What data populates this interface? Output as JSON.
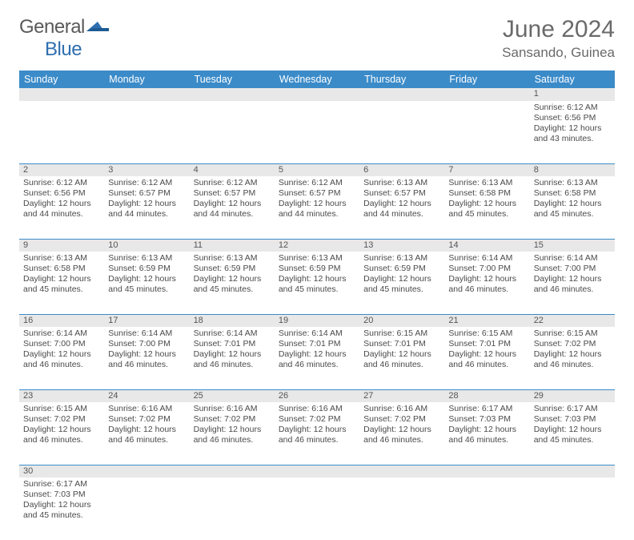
{
  "brand": {
    "part1": "General",
    "part2": "Blue"
  },
  "title": "June 2024",
  "location": "Sansando, Guinea",
  "colors": {
    "header_bg": "#3b8bc9",
    "header_text": "#ffffff",
    "daynum_bg": "#e8e8e8",
    "border": "#3b8bc9",
    "brand_blue": "#2f6fb0",
    "text": "#4a4a4a"
  },
  "weekdays": [
    "Sunday",
    "Monday",
    "Tuesday",
    "Wednesday",
    "Thursday",
    "Friday",
    "Saturday"
  ],
  "weeks": [
    [
      null,
      null,
      null,
      null,
      null,
      null,
      {
        "n": "1",
        "t": "Sunrise: 6:12 AM\nSunset: 6:56 PM\nDaylight: 12 hours\nand 43 minutes."
      }
    ],
    [
      {
        "n": "2",
        "t": "Sunrise: 6:12 AM\nSunset: 6:56 PM\nDaylight: 12 hours\nand 44 minutes."
      },
      {
        "n": "3",
        "t": "Sunrise: 6:12 AM\nSunset: 6:57 PM\nDaylight: 12 hours\nand 44 minutes."
      },
      {
        "n": "4",
        "t": "Sunrise: 6:12 AM\nSunset: 6:57 PM\nDaylight: 12 hours\nand 44 minutes."
      },
      {
        "n": "5",
        "t": "Sunrise: 6:12 AM\nSunset: 6:57 PM\nDaylight: 12 hours\nand 44 minutes."
      },
      {
        "n": "6",
        "t": "Sunrise: 6:13 AM\nSunset: 6:57 PM\nDaylight: 12 hours\nand 44 minutes."
      },
      {
        "n": "7",
        "t": "Sunrise: 6:13 AM\nSunset: 6:58 PM\nDaylight: 12 hours\nand 45 minutes."
      },
      {
        "n": "8",
        "t": "Sunrise: 6:13 AM\nSunset: 6:58 PM\nDaylight: 12 hours\nand 45 minutes."
      }
    ],
    [
      {
        "n": "9",
        "t": "Sunrise: 6:13 AM\nSunset: 6:58 PM\nDaylight: 12 hours\nand 45 minutes."
      },
      {
        "n": "10",
        "t": "Sunrise: 6:13 AM\nSunset: 6:59 PM\nDaylight: 12 hours\nand 45 minutes."
      },
      {
        "n": "11",
        "t": "Sunrise: 6:13 AM\nSunset: 6:59 PM\nDaylight: 12 hours\nand 45 minutes."
      },
      {
        "n": "12",
        "t": "Sunrise: 6:13 AM\nSunset: 6:59 PM\nDaylight: 12 hours\nand 45 minutes."
      },
      {
        "n": "13",
        "t": "Sunrise: 6:13 AM\nSunset: 6:59 PM\nDaylight: 12 hours\nand 45 minutes."
      },
      {
        "n": "14",
        "t": "Sunrise: 6:14 AM\nSunset: 7:00 PM\nDaylight: 12 hours\nand 46 minutes."
      },
      {
        "n": "15",
        "t": "Sunrise: 6:14 AM\nSunset: 7:00 PM\nDaylight: 12 hours\nand 46 minutes."
      }
    ],
    [
      {
        "n": "16",
        "t": "Sunrise: 6:14 AM\nSunset: 7:00 PM\nDaylight: 12 hours\nand 46 minutes."
      },
      {
        "n": "17",
        "t": "Sunrise: 6:14 AM\nSunset: 7:00 PM\nDaylight: 12 hours\nand 46 minutes."
      },
      {
        "n": "18",
        "t": "Sunrise: 6:14 AM\nSunset: 7:01 PM\nDaylight: 12 hours\nand 46 minutes."
      },
      {
        "n": "19",
        "t": "Sunrise: 6:14 AM\nSunset: 7:01 PM\nDaylight: 12 hours\nand 46 minutes."
      },
      {
        "n": "20",
        "t": "Sunrise: 6:15 AM\nSunset: 7:01 PM\nDaylight: 12 hours\nand 46 minutes."
      },
      {
        "n": "21",
        "t": "Sunrise: 6:15 AM\nSunset: 7:01 PM\nDaylight: 12 hours\nand 46 minutes."
      },
      {
        "n": "22",
        "t": "Sunrise: 6:15 AM\nSunset: 7:02 PM\nDaylight: 12 hours\nand 46 minutes."
      }
    ],
    [
      {
        "n": "23",
        "t": "Sunrise: 6:15 AM\nSunset: 7:02 PM\nDaylight: 12 hours\nand 46 minutes."
      },
      {
        "n": "24",
        "t": "Sunrise: 6:16 AM\nSunset: 7:02 PM\nDaylight: 12 hours\nand 46 minutes."
      },
      {
        "n": "25",
        "t": "Sunrise: 6:16 AM\nSunset: 7:02 PM\nDaylight: 12 hours\nand 46 minutes."
      },
      {
        "n": "26",
        "t": "Sunrise: 6:16 AM\nSunset: 7:02 PM\nDaylight: 12 hours\nand 46 minutes."
      },
      {
        "n": "27",
        "t": "Sunrise: 6:16 AM\nSunset: 7:02 PM\nDaylight: 12 hours\nand 46 minutes."
      },
      {
        "n": "28",
        "t": "Sunrise: 6:17 AM\nSunset: 7:03 PM\nDaylight: 12 hours\nand 46 minutes."
      },
      {
        "n": "29",
        "t": "Sunrise: 6:17 AM\nSunset: 7:03 PM\nDaylight: 12 hours\nand 45 minutes."
      }
    ],
    [
      {
        "n": "30",
        "t": "Sunrise: 6:17 AM\nSunset: 7:03 PM\nDaylight: 12 hours\nand 45 minutes."
      },
      null,
      null,
      null,
      null,
      null,
      null
    ]
  ]
}
